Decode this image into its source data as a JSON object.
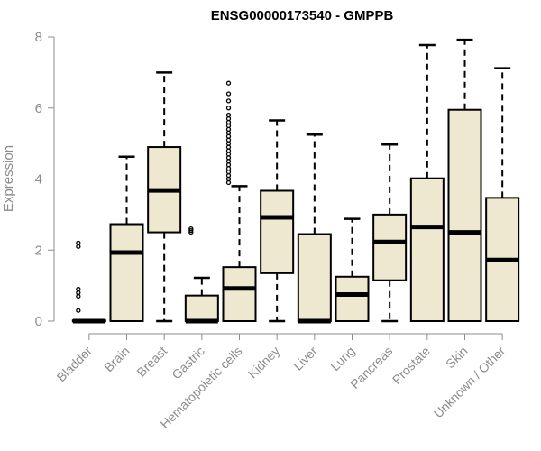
{
  "chart_data": {
    "type": "box",
    "title": "ENSG00000173540 - GMPPB",
    "xlabel": "",
    "ylabel": "Expression",
    "ylim": [
      0,
      8
    ],
    "yticks": [
      0,
      2,
      4,
      6,
      8
    ],
    "grid": false,
    "box_color": "#efe8d0",
    "categories": [
      "Bladder",
      "Brain",
      "Breast",
      "Gastric",
      "Hematopoietic cells",
      "Kidney",
      "Liver",
      "Lung",
      "Pancreas",
      "Prostate",
      "Skin",
      "Unknown / Other"
    ],
    "boxes": [
      {
        "min": 0,
        "q1": 0,
        "median": 0,
        "q3": 0.02,
        "max": 0.02,
        "outliers": [
          0.3,
          0.7,
          0.8,
          0.9,
          2.1,
          2.2
        ]
      },
      {
        "min": 0,
        "q1": 0,
        "median": 1.93,
        "q3": 2.73,
        "max": 4.63,
        "outliers": []
      },
      {
        "min": 0,
        "q1": 2.5,
        "median": 3.68,
        "q3": 4.9,
        "max": 7.0,
        "outliers": []
      },
      {
        "min": 0,
        "q1": 0,
        "median": 0,
        "q3": 0.72,
        "max": 1.22,
        "outliers": [
          2.5,
          2.55,
          2.6
        ]
      },
      {
        "min": 0,
        "q1": 0,
        "median": 0.92,
        "q3": 1.52,
        "max": 3.8,
        "outliers": [
          3.9,
          4.0,
          4.1,
          4.2,
          4.3,
          4.4,
          4.5,
          4.6,
          4.7,
          4.8,
          4.9,
          5.0,
          5.1,
          5.2,
          5.3,
          5.4,
          5.5,
          5.6,
          5.7,
          5.8,
          6.0,
          6.2,
          6.4,
          6.7
        ]
      },
      {
        "min": 0,
        "q1": 1.35,
        "median": 2.92,
        "q3": 3.67,
        "max": 5.65,
        "outliers": []
      },
      {
        "min": 0,
        "q1": 0,
        "median": 0,
        "q3": 2.45,
        "max": 5.25,
        "outliers": []
      },
      {
        "min": 0,
        "q1": 0,
        "median": 0.75,
        "q3": 1.25,
        "max": 2.88,
        "outliers": []
      },
      {
        "min": 0,
        "q1": 1.15,
        "median": 2.23,
        "q3": 3.0,
        "max": 4.97,
        "outliers": []
      },
      {
        "min": 0,
        "q1": 0,
        "median": 2.65,
        "q3": 4.02,
        "max": 7.77,
        "outliers": []
      },
      {
        "min": 0,
        "q1": 0,
        "median": 2.5,
        "q3": 5.95,
        "max": 7.92,
        "outliers": []
      },
      {
        "min": 0,
        "q1": 0,
        "median": 1.72,
        "q3": 3.47,
        "max": 7.12,
        "outliers": []
      }
    ]
  }
}
